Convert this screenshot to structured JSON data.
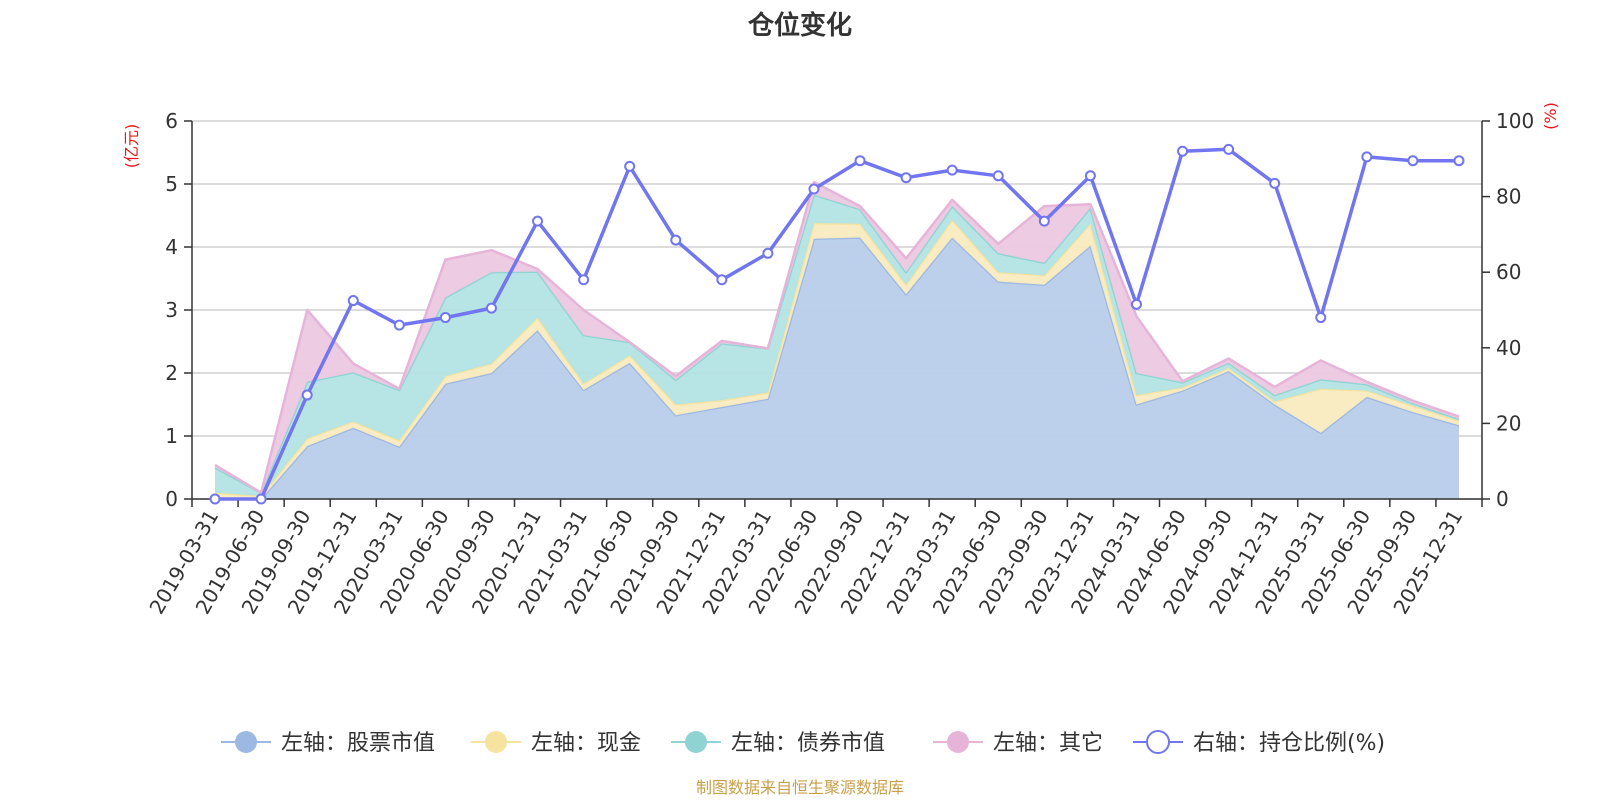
{
  "chart_data": {
    "type": "area",
    "title": "仓位变化",
    "left_unit": "(亿元)",
    "right_unit": "(%)",
    "left_ylim": [
      0,
      6
    ],
    "left_ticks": [
      "0",
      "1",
      "2",
      "3",
      "4",
      "5",
      "6"
    ],
    "right_ylim": [
      0,
      100
    ],
    "right_ticks": [
      "0",
      "20",
      "40",
      "60",
      "80",
      "100"
    ],
    "x": [
      "2019-03-31",
      "2019-06-30",
      "2019-09-30",
      "2019-12-31",
      "2020-03-31",
      "2020-06-30",
      "2020-09-30",
      "2020-12-31",
      "2021-03-31",
      "2021-06-30",
      "2021-09-30",
      "2021-12-31",
      "2022-03-31",
      "2022-06-30",
      "2022-09-30",
      "2022-12-31",
      "2023-03-31",
      "2023-06-30",
      "2023-09-30",
      "2023-12-31",
      "2024-03-31",
      "2024-06-30",
      "2024-09-30",
      "2024-12-31",
      "2025-03-31",
      "2025-06-30",
      "2025-09-30",
      "2025-12-31"
    ],
    "series": [
      {
        "name": "左轴：股票市值",
        "axis": "left",
        "color": "#9db8e2",
        "fill": "#b9cdea",
        "values": [
          0,
          0,
          0.84,
          1.13,
          0.83,
          1.83,
          2.0,
          2.68,
          1.73,
          2.16,
          1.33,
          1.46,
          1.59,
          4.13,
          4.15,
          3.25,
          4.15,
          3.45,
          3.4,
          4.02,
          1.5,
          1.72,
          2.03,
          1.5,
          1.05,
          1.62,
          1.38,
          1.17
        ]
      },
      {
        "name": "左轴：现金",
        "axis": "left",
        "color": "#f6e3a0",
        "fill": "#f9ebbf",
        "values": [
          0.1,
          0.05,
          0.12,
          0.1,
          0.1,
          0.12,
          0.15,
          0.2,
          0.1,
          0.12,
          0.17,
          0.11,
          0.1,
          0.25,
          0.22,
          0.15,
          0.28,
          0.15,
          0.15,
          0.35,
          0.15,
          0.05,
          0.05,
          0.05,
          0.7,
          0.1,
          0.1,
          0.07
        ]
      },
      {
        "name": "左轴：债券市值",
        "axis": "left",
        "color": "#8fd3d3",
        "fill": "#b3e3e3",
        "values": [
          0.4,
          0.05,
          0.9,
          0.78,
          0.8,
          1.25,
          1.45,
          0.73,
          0.77,
          0.21,
          0.39,
          0.9,
          0.7,
          0.45,
          0.23,
          0.2,
          0.22,
          0.3,
          0.2,
          0.25,
          0.35,
          0.08,
          0.08,
          0.1,
          0.15,
          0.1,
          0.04,
          0.03
        ]
      },
      {
        "name": "左轴：其它",
        "axis": "left",
        "color": "#e7b4d9",
        "fill": "#ecc9e2",
        "values": [
          0.04,
          0,
          1.14,
          0.14,
          0.02,
          0.6,
          0.35,
          0.04,
          0.4,
          0.0,
          0.06,
          0.04,
          0.0,
          0.2,
          0.05,
          0.22,
          0.1,
          0.15,
          0.9,
          0.06,
          0.9,
          0.02,
          0.07,
          0.13,
          0.3,
          0.04,
          0.04,
          0.04
        ]
      },
      {
        "name": "右轴：持仓比例(%)",
        "axis": "right",
        "color": "#7176f0",
        "values": [
          0,
          0,
          27.5,
          52.5,
          46,
          48,
          50.5,
          73.5,
          58,
          88,
          68.5,
          58,
          65,
          82,
          89.5,
          85,
          87,
          85.5,
          73.5,
          85.5,
          51.5,
          92,
          92.5,
          83.5,
          48,
          90.5,
          89.5,
          89.5
        ]
      }
    ],
    "legend_position": "bottom",
    "grid": true
  },
  "source_note": "制图数据来自恒生聚源数据库"
}
